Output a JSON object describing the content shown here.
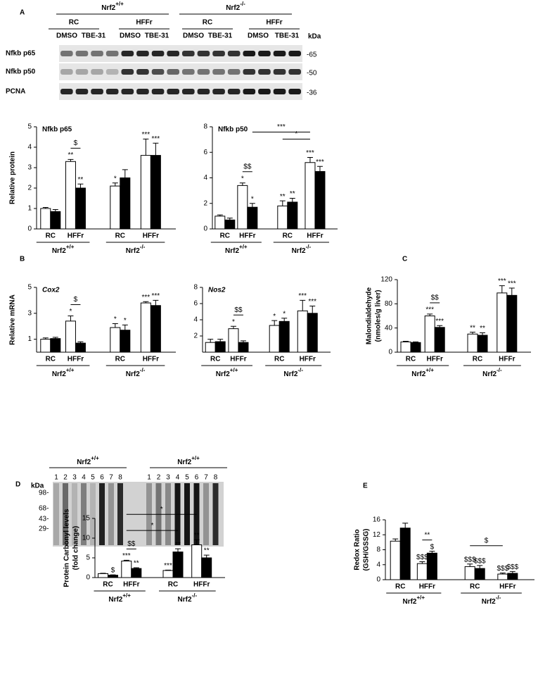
{
  "panels": [
    "A",
    "B",
    "C",
    "D",
    "E"
  ],
  "blot_a": {
    "genotypes": [
      {
        "name": "Nrf2",
        "sup": "+/+"
      },
      {
        "name": "Nrf2",
        "sup": "-/-"
      }
    ],
    "diets": [
      "RC",
      "HFFr",
      "RC",
      "HFFr"
    ],
    "treatments": [
      "DMSO",
      "TBE-31",
      "DMSO",
      "TBE-31",
      "DMSO",
      "TBE-31",
      "DMSO",
      "TBE-31"
    ],
    "kda": "kDa",
    "rows": [
      "Nfkb p65",
      "Nfkb p50",
      "PCNA"
    ],
    "markers": [
      "-65",
      "-50",
      "-36"
    ]
  },
  "blot_d": {
    "genotypes": [
      {
        "name": "Nrf2",
        "sup": "+/+"
      },
      {
        "name": "Nrf2",
        "sup": "+/+"
      }
    ],
    "lanes": [
      "1",
      "2",
      "3",
      "4",
      "5",
      "6",
      "7",
      "8",
      "1",
      "2",
      "3",
      "4",
      "5",
      "6",
      "7",
      "8"
    ],
    "kda": "kDa",
    "markers": [
      "98-",
      "68-",
      "43-",
      "29-"
    ]
  },
  "chart_data": [
    {
      "type": "bar",
      "title": "Nfkb p65",
      "title_italic": false,
      "ylabel": "Relative protein",
      "categories": [
        "RC",
        "HFFr",
        "RC",
        "HFFr"
      ],
      "groups": [
        {
          "name": "Nrf2",
          "sup": "+/+"
        },
        {
          "name": "Nrf2",
          "sup": "-/-"
        }
      ],
      "ylim": [
        0,
        5
      ],
      "yticks": [
        0,
        1,
        2,
        3,
        4,
        5
      ],
      "series": [
        {
          "color": "#ffffff",
          "values": [
            1.0,
            3.3,
            2.1,
            3.6
          ],
          "errors": [
            0.05,
            0.1,
            0.15,
            0.8
          ],
          "annotations": [
            null,
            "**",
            "*",
            "***"
          ]
        },
        {
          "color": "#000000",
          "values": [
            0.85,
            2.0,
            2.5,
            3.6
          ],
          "errors": [
            0.1,
            0.2,
            0.4,
            0.6
          ],
          "annotations": [
            null,
            "**",
            null,
            "***"
          ]
        }
      ],
      "brackets": [
        {
          "label": "$",
          "from": [
            1,
            0
          ],
          "to": [
            1,
            1
          ]
        }
      ]
    },
    {
      "type": "bar",
      "title": "Nfkb p50",
      "title_italic": false,
      "categories": [
        "RC",
        "HFFr",
        "RC",
        "HFFr"
      ],
      "groups": [
        {
          "name": "Nrf2",
          "sup": "+/+"
        },
        {
          "name": "Nrf2",
          "sup": "-/-"
        }
      ],
      "ylim": [
        0,
        8
      ],
      "yticks": [
        0,
        2,
        4,
        6,
        8
      ],
      "series": [
        {
          "color": "#ffffff",
          "values": [
            1.0,
            3.4,
            1.8,
            5.2
          ],
          "errors": [
            0.1,
            0.2,
            0.4,
            0.4
          ],
          "annotations": [
            null,
            "*",
            "**",
            "***"
          ]
        },
        {
          "color": "#000000",
          "values": [
            0.7,
            1.7,
            2.1,
            4.5
          ],
          "errors": [
            0.15,
            0.3,
            0.3,
            0.4
          ],
          "annotations": [
            null,
            "*",
            "**",
            "***"
          ]
        }
      ],
      "brackets": [
        {
          "label": "$$",
          "from": [
            1,
            0
          ],
          "to": [
            1,
            1
          ]
        },
        {
          "label": "*",
          "from": [
            2,
            0
          ],
          "to": [
            3,
            0
          ]
        },
        {
          "label": "***",
          "from": [
            1,
            1
          ],
          "to": [
            3,
            0
          ]
        }
      ]
    },
    {
      "type": "bar",
      "title": "Cox2",
      "title_italic": true,
      "ylabel": "Relative mRNA",
      "categories": [
        "RC",
        "HFFr",
        "RC",
        "HFFr"
      ],
      "groups": [
        {
          "name": "Nrf2",
          "sup": "+/+"
        },
        {
          "name": "Nrf2",
          "sup": "-/-"
        }
      ],
      "ylim": [
        0,
        5
      ],
      "yticks": [
        1,
        3,
        5
      ],
      "series": [
        {
          "color": "#ffffff",
          "values": [
            1.0,
            2.4,
            1.9,
            3.8
          ],
          "errors": [
            0.1,
            0.4,
            0.3,
            0.1
          ],
          "annotations": [
            null,
            "*",
            "*",
            "***"
          ]
        },
        {
          "color": "#000000",
          "values": [
            1.05,
            0.7,
            1.7,
            3.6
          ],
          "errors": [
            0.1,
            0.1,
            0.4,
            0.4
          ],
          "annotations": [
            null,
            null,
            "*",
            "***"
          ]
        }
      ],
      "brackets": [
        {
          "label": "$",
          "from": [
            1,
            0
          ],
          "to": [
            1,
            1
          ]
        }
      ]
    },
    {
      "type": "bar",
      "title": "Nos2",
      "title_italic": true,
      "categories": [
        "RC",
        "HFFr",
        "RC",
        "HFFr"
      ],
      "groups": [
        {
          "name": "Nrf2",
          "sup": "+/+"
        },
        {
          "name": "Nrf2",
          "sup": "-/-"
        }
      ],
      "ylim": [
        0,
        8
      ],
      "yticks": [
        2,
        4,
        6,
        8
      ],
      "series": [
        {
          "color": "#ffffff",
          "values": [
            1.2,
            2.9,
            3.3,
            5.1
          ],
          "errors": [
            0.4,
            0.3,
            0.6,
            1.3
          ],
          "annotations": [
            null,
            "*",
            "*",
            "***"
          ]
        },
        {
          "color": "#000000",
          "values": [
            1.3,
            1.2,
            3.8,
            4.8
          ],
          "errors": [
            0.3,
            0.2,
            0.4,
            0.9
          ],
          "annotations": [
            null,
            null,
            "*",
            "***"
          ]
        }
      ],
      "brackets": [
        {
          "label": "$$",
          "from": [
            1,
            0
          ],
          "to": [
            1,
            1
          ]
        }
      ]
    },
    {
      "type": "bar",
      "ylabel": "Malondialdehyde",
      "ylabel_sub": "(nmoles/g liver)",
      "categories": [
        "RC",
        "HFFr",
        "RC",
        "HFFr"
      ],
      "groups": [
        {
          "name": "Nrf2",
          "sup": "+/+"
        },
        {
          "name": "Nrf2",
          "sup": "-/-"
        }
      ],
      "ylim": [
        0,
        120
      ],
      "yticks": [
        0,
        40,
        80,
        120
      ],
      "series": [
        {
          "color": "#ffffff",
          "values": [
            17,
            60,
            30,
            98
          ],
          "errors": [
            1,
            3,
            3,
            12
          ],
          "annotations": [
            null,
            "***",
            "**",
            "***"
          ]
        },
        {
          "color": "#000000",
          "values": [
            16,
            41,
            28,
            94
          ],
          "errors": [
            1,
            3,
            4,
            12
          ],
          "annotations": [
            null,
            "***",
            "**",
            "***"
          ]
        }
      ],
      "brackets": [
        {
          "label": "$$",
          "from": [
            1,
            0
          ],
          "to": [
            1,
            1
          ]
        }
      ]
    },
    {
      "type": "bar",
      "ylabel": "Protein Carbonyl levels",
      "ylabel_sub": "(fold change)",
      "categories": [
        "RC",
        "HFFr",
        "RC",
        "HFFr"
      ],
      "groups": [
        {
          "name": "Nrf2",
          "sup": "+/+"
        },
        {
          "name": "Nrf2",
          "sup": "-/-"
        }
      ],
      "ylim": [
        0,
        15
      ],
      "yticks": [
        0,
        5,
        10,
        15
      ],
      "series": [
        {
          "color": "#ffffff",
          "values": [
            1.0,
            4.2,
            1.8,
            8.3
          ],
          "errors": [
            0.1,
            0.2,
            0.1,
            1.3
          ],
          "annotations": [
            null,
            "***",
            "***",
            "**"
          ]
        },
        {
          "color": "#000000",
          "values": [
            0.6,
            2.3,
            6.5,
            5.0
          ],
          "errors": [
            0.1,
            0.2,
            0.8,
            0.7
          ],
          "annotations": [
            "$",
            "**",
            "**",
            "**"
          ]
        }
      ],
      "brackets": [
        {
          "label": "$$",
          "from": [
            1,
            0
          ],
          "to": [
            1,
            1
          ]
        },
        {
          "label": "*",
          "from": [
            1,
            0
          ],
          "to": [
            2,
            1
          ]
        },
        {
          "label": "*",
          "from": [
            1,
            0
          ],
          "to": [
            3,
            0
          ]
        }
      ]
    },
    {
      "type": "bar",
      "ylabel": "Redox Ratio",
      "ylabel_sub": "(GSH/GSSG)",
      "categories": [
        "RC",
        "HFFr",
        "RC",
        "HFFr"
      ],
      "groups": [
        {
          "name": "Nrf2",
          "sup": "+/+"
        },
        {
          "name": "Nrf2",
          "sup": "-/-"
        }
      ],
      "ylim": [
        0,
        16
      ],
      "yticks": [
        0,
        4,
        8,
        12,
        16
      ],
      "series": [
        {
          "color": "#ffffff",
          "values": [
            10.3,
            4.3,
            3.5,
            1.5
          ],
          "errors": [
            0.6,
            0.5,
            0.7,
            0.3
          ],
          "annotations": [
            null,
            "$$$",
            "$$$",
            "$$$"
          ]
        },
        {
          "color": "#000000",
          "values": [
            13.8,
            7.1,
            3.0,
            1.7
          ],
          "errors": [
            1.3,
            0.5,
            0.8,
            0.5
          ],
          "annotations": [
            null,
            "$",
            "$$$",
            "$$$"
          ]
        }
      ],
      "brackets": [
        {
          "label": "**",
          "from": [
            1,
            0
          ],
          "to": [
            1,
            1
          ]
        },
        {
          "label": "$",
          "from": [
            2,
            0
          ],
          "to": [
            3,
            0
          ]
        }
      ]
    }
  ]
}
